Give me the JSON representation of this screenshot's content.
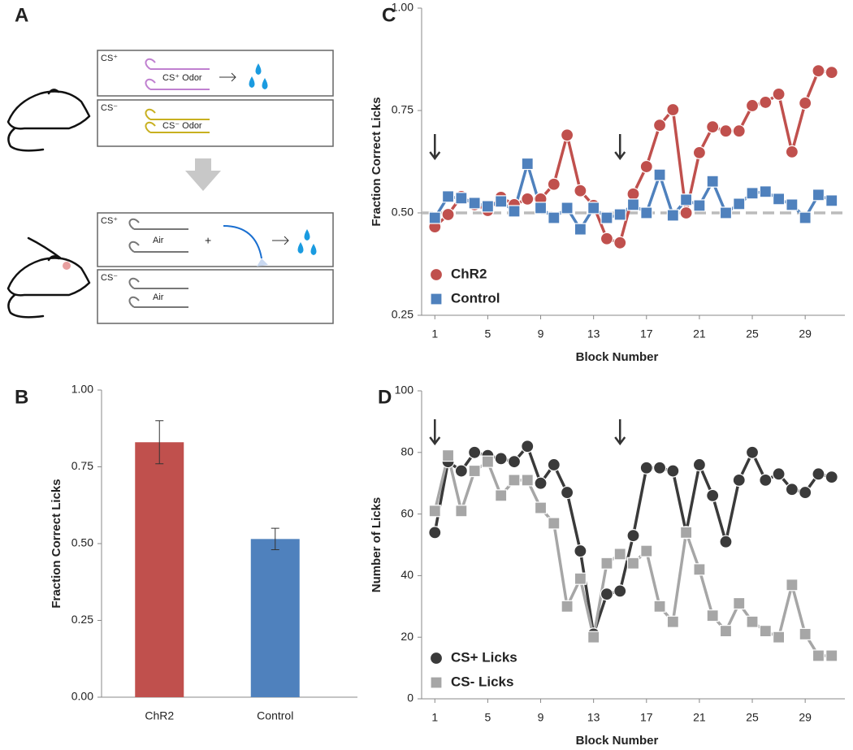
{
  "diagram": {
    "panel": "A",
    "top_boxes": [
      {
        "label": "CS⁺",
        "odor": "CS⁺ Odor"
      },
      {
        "label": "CS⁻",
        "odor": "CS⁻ Odor"
      }
    ],
    "bottom_boxes": [
      {
        "label": "CS⁺",
        "odor": "Air"
      },
      {
        "label": "CS⁻",
        "odor": "Air"
      }
    ]
  },
  "chart_data": [
    {
      "type": "bar",
      "panel": "B",
      "ylabel": "Fraction Correct Licks",
      "categories": [
        "ChR2",
        "Control"
      ],
      "values": [
        0.83,
        0.515
      ],
      "errors": [
        0.07,
        0.035
      ],
      "colors": [
        "#c0504d",
        "#4f81bd"
      ],
      "ylim": [
        0,
        1
      ],
      "yticks": [
        {
          "value": 0,
          "label": "0.00"
        },
        {
          "value": 0.25,
          "label": "0.25"
        },
        {
          "value": 0.5,
          "label": "0.50"
        },
        {
          "value": 0.75,
          "label": "0.75"
        },
        {
          "value": 1,
          "label": "1.00"
        }
      ]
    },
    {
      "type": "line",
      "panel": "C",
      "ylabel": "Fraction Correct Licks",
      "xlabel": "Block Number",
      "x": [
        1,
        2,
        3,
        4,
        5,
        6,
        7,
        8,
        9,
        10,
        11,
        12,
        13,
        14,
        15,
        16,
        17,
        18,
        19,
        20,
        21,
        22,
        23,
        24,
        25,
        26,
        27,
        28,
        29,
        30,
        31
      ],
      "series": [
        {
          "name": "ChR2",
          "color": "#c0504d",
          "marker": "circle",
          "values": [
            0.466,
            0.496,
            0.54,
            0.52,
            0.506,
            0.538,
            0.52,
            0.534,
            0.534,
            0.57,
            0.69,
            0.554,
            0.518,
            0.437,
            0.427,
            0.546,
            0.613,
            0.714,
            0.752,
            0.5,
            0.647,
            0.71,
            0.7,
            0.7,
            0.762,
            0.77,
            0.79,
            0.649,
            0.768,
            0.847,
            0.843
          ]
        },
        {
          "name": "Control",
          "color": "#4f81bd",
          "marker": "square",
          "values": [
            0.488,
            0.54,
            0.536,
            0.524,
            0.516,
            0.528,
            0.504,
            0.62,
            0.512,
            0.488,
            0.512,
            0.46,
            0.512,
            0.488,
            0.496,
            0.52,
            0.5,
            0.593,
            0.494,
            0.532,
            0.518,
            0.577,
            0.5,
            0.522,
            0.548,
            0.552,
            0.534,
            0.52,
            0.488,
            0.544,
            0.53
          ]
        }
      ],
      "reference_line": 0.5,
      "arrow_x": [
        1,
        15
      ],
      "legend": "lower left",
      "xlim": [
        0,
        32
      ],
      "xticks": [
        1,
        5,
        9,
        13,
        17,
        21,
        25,
        29
      ],
      "ylim": [
        0.25,
        1
      ],
      "yticks": [
        {
          "value": 0.25,
          "label": "0.25"
        },
        {
          "value": 0.5,
          "label": "0.50"
        },
        {
          "value": 0.75,
          "label": "0.75"
        },
        {
          "value": 1,
          "label": "1.00"
        }
      ]
    },
    {
      "type": "line",
      "panel": "D",
      "ylabel": "Number of Licks",
      "xlabel": "Block Number",
      "x": [
        1,
        2,
        3,
        4,
        5,
        6,
        7,
        8,
        9,
        10,
        11,
        12,
        13,
        14,
        15,
        16,
        17,
        18,
        19,
        20,
        21,
        22,
        23,
        24,
        25,
        26,
        27,
        28,
        29,
        30,
        31
      ],
      "series": [
        {
          "name": "CS+ Licks",
          "color": "#3a3a3a",
          "marker": "circle",
          "values": [
            54,
            77,
            74,
            80,
            79,
            78,
            77,
            82,
            70,
            76,
            67,
            48,
            21,
            34,
            35,
            53,
            75,
            75,
            74,
            54,
            76,
            66,
            51,
            71,
            80,
            71,
            73,
            68,
            67,
            73,
            72
          ]
        },
        {
          "name": "CS-  Licks",
          "color": "#a6a6a6",
          "marker": "square",
          "values": [
            61,
            79,
            61,
            74,
            77,
            66,
            71,
            71,
            62,
            57,
            30,
            39,
            20,
            44,
            47,
            44,
            48,
            30,
            25,
            54,
            42,
            27,
            22,
            31,
            25,
            22,
            20,
            37,
            21,
            14,
            14
          ]
        }
      ],
      "arrow_x": [
        1,
        15
      ],
      "legend": "lower left",
      "xlim": [
        0,
        32
      ],
      "xticks": [
        1,
        5,
        9,
        13,
        17,
        21,
        25,
        29
      ],
      "ylim": [
        0,
        100
      ],
      "yticks": [
        0,
        20,
        40,
        60,
        80,
        100
      ]
    }
  ]
}
